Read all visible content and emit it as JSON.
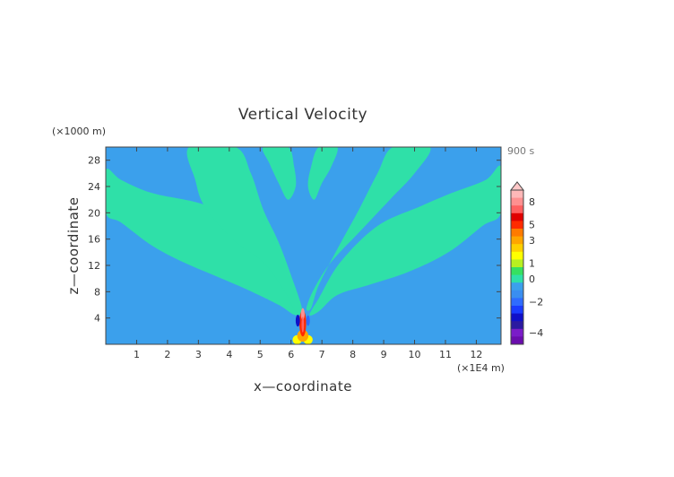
{
  "chart_data": {
    "type": "heatmap",
    "title": "Vertical Velocity",
    "xlabel": "x—coordinate",
    "ylabel": "z—coordinate",
    "x_unit": "(×1E4 m)",
    "y_unit": "(×1000 m)",
    "time_label": "900 s",
    "xlim": [
      0,
      12.8
    ],
    "ylim": [
      0,
      30
    ],
    "x_ticks": [
      1,
      2,
      3,
      4,
      5,
      6,
      7,
      8,
      9,
      10,
      11,
      12
    ],
    "y_ticks": [
      4,
      8,
      12,
      16,
      20,
      24,
      28
    ],
    "colorbar": {
      "tick_labels": [
        "8",
        "5",
        "3",
        "1",
        "0",
        "−2",
        "−4"
      ],
      "levels": [
        {
          "value": -4.5,
          "color": "#6a0dad"
        },
        {
          "value": -4,
          "color": "#7a1cc8"
        },
        {
          "value": -3.5,
          "color": "#2b1aa0"
        },
        {
          "value": -3,
          "color": "#1010c8"
        },
        {
          "value": -2.5,
          "color": "#1a3cff"
        },
        {
          "value": -2,
          "color": "#2f6cff"
        },
        {
          "value": -1.5,
          "color": "#3a8ef0"
        },
        {
          "value": -0.5,
          "color": "#3ba0ec"
        },
        {
          "value": 0,
          "color": "#2fe0a8"
        },
        {
          "value": 0.5,
          "color": "#36e060"
        },
        {
          "value": 1,
          "color": "#b8f020"
        },
        {
          "value": 1.5,
          "color": "#ffff00"
        },
        {
          "value": 2,
          "color": "#ffd000"
        },
        {
          "value": 3,
          "color": "#ffa500"
        },
        {
          "value": 4,
          "color": "#ff7a00"
        },
        {
          "value": 5,
          "color": "#ff2a00"
        },
        {
          "value": 6,
          "color": "#e00000"
        },
        {
          "value": 7,
          "color": "#ff6060"
        },
        {
          "value": 8,
          "color": "#ff9090"
        },
        {
          "value": 9,
          "color": "#ffb8b8"
        }
      ]
    },
    "background_color": "#3ba0ec",
    "positive_color": "#2fe0a8",
    "positive_bands": [
      {
        "name": "outer-left",
        "path_data": [
          [
            0,
            26.5
          ],
          [
            0.5,
            25
          ],
          [
            1.5,
            23
          ],
          [
            3,
            21.5
          ],
          [
            4.5,
            19
          ],
          [
            5.5,
            14.5
          ],
          [
            6,
            9.5
          ],
          [
            6.3,
            5
          ],
          [
            6.1,
            4.5
          ],
          [
            5.6,
            6
          ],
          [
            4.5,
            8.5
          ],
          [
            3.5,
            10.5
          ],
          [
            2.5,
            12.5
          ],
          [
            1.5,
            15
          ],
          [
            0.5,
            18.5
          ],
          [
            0,
            20
          ]
        ]
      },
      {
        "name": "middle-left",
        "path_data": [
          [
            2.7,
            30
          ],
          [
            4.2,
            30
          ],
          [
            4.7,
            26
          ],
          [
            5.1,
            20.5
          ],
          [
            5.6,
            15.5
          ],
          [
            6.0,
            10.5
          ],
          [
            6.35,
            5.5
          ],
          [
            6.15,
            5
          ],
          [
            5.8,
            8
          ],
          [
            5.1,
            12.5
          ],
          [
            4.1,
            16
          ],
          [
            3.2,
            21
          ],
          [
            2.9,
            25
          ]
        ]
      },
      {
        "name": "inner-left",
        "path_data": [
          [
            5.1,
            30
          ],
          [
            5.9,
            30
          ],
          [
            6.1,
            27
          ],
          [
            6.15,
            24
          ],
          [
            5.9,
            22
          ],
          [
            5.6,
            24.5
          ],
          [
            5.3,
            27.5
          ]
        ]
      },
      {
        "name": "inner-right",
        "path_data": [
          [
            6.9,
            30
          ],
          [
            7.5,
            30
          ],
          [
            7.3,
            27
          ],
          [
            7.0,
            24.5
          ],
          [
            6.75,
            22
          ],
          [
            6.55,
            24
          ],
          [
            6.65,
            27
          ]
        ]
      },
      {
        "name": "middle-right",
        "path_data": [
          [
            9.3,
            30
          ],
          [
            10.5,
            30
          ],
          [
            10.0,
            26
          ],
          [
            9.2,
            22
          ],
          [
            8.2,
            17
          ],
          [
            7.3,
            12.5
          ],
          [
            6.75,
            8.5
          ],
          [
            6.5,
            5.5
          ],
          [
            6.65,
            5.5
          ],
          [
            6.9,
            9
          ],
          [
            7.5,
            14.5
          ],
          [
            8.2,
            20.5
          ],
          [
            8.8,
            26
          ]
        ]
      },
      {
        "name": "outer-right",
        "path_data": [
          [
            12.8,
            27
          ],
          [
            12.3,
            25
          ],
          [
            11.2,
            23
          ],
          [
            10.2,
            21
          ],
          [
            8.8,
            18
          ],
          [
            7.6,
            12.5
          ],
          [
            6.9,
            7
          ],
          [
            6.6,
            4.5
          ],
          [
            6.9,
            5
          ],
          [
            7.5,
            7.5
          ],
          [
            8.5,
            9
          ],
          [
            9.8,
            11
          ],
          [
            11.1,
            14
          ],
          [
            12.2,
            18
          ],
          [
            12.8,
            20
          ]
        ]
      }
    ],
    "updraft_core": [
      {
        "name": "core-base-left",
        "x": 6.2,
        "y": 0.7,
        "rx": 0.15,
        "ry": 0.7,
        "value": 1.5
      },
      {
        "name": "core-base-right",
        "x": 6.55,
        "y": 0.7,
        "rx": 0.15,
        "ry": 0.7,
        "value": 1.5
      },
      {
        "name": "core-base-mid",
        "x": 6.38,
        "y": 1.3,
        "rx": 0.18,
        "ry": 0.9,
        "value": 3
      },
      {
        "name": "core-column",
        "x": 6.38,
        "y": 3.2,
        "rx": 0.11,
        "ry": 2.0,
        "value": 5
      },
      {
        "name": "core-top",
        "x": 6.38,
        "y": 4.6,
        "rx": 0.06,
        "ry": 0.9,
        "value": 8
      },
      {
        "name": "downdraft-left",
        "x": 6.22,
        "y": 3.6,
        "rx": 0.07,
        "ry": 0.9,
        "value": -3
      },
      {
        "name": "downdraft-right",
        "x": 6.55,
        "y": 3.6,
        "rx": 0.06,
        "ry": 0.8,
        "value": -2
      },
      {
        "name": "core-inner",
        "x": 6.38,
        "y": 3.0,
        "rx": 0.04,
        "ry": 1.2,
        "value": 7
      }
    ]
  }
}
